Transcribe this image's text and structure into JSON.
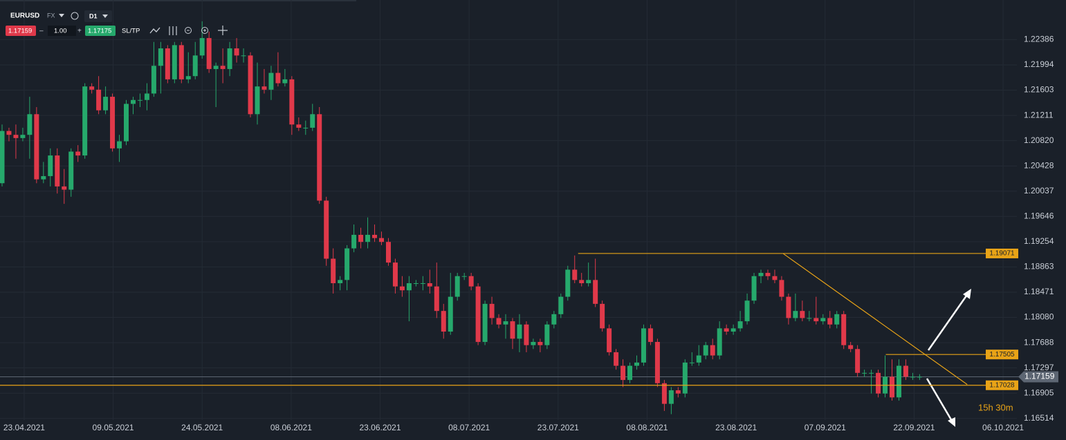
{
  "toolbar": {
    "symbol": "EURUSD",
    "market": "FX",
    "timeframe": "D1",
    "lot": "1.00",
    "ask": "1.17175",
    "sltp": "SL/TP"
  },
  "chart_data": {
    "type": "candlestick",
    "xlim": [
      -0.3,
      147.1
    ],
    "ylim": [
      1.1649,
      1.23
    ],
    "yticks": [
      1.22386,
      1.21994,
      1.21603,
      1.21211,
      {
        "value": 1.2082,
        "label": "1.20820"
      },
      1.20428,
      1.20037,
      1.19646,
      1.19254,
      1.18863,
      1.18471,
      {
        "value": 1.1808,
        "label": "1.18080"
      },
      1.17688,
      1.17297,
      1.16905,
      1.16514
    ],
    "xticks": [
      {
        "value": 3.2,
        "label": "23.04.2021"
      },
      {
        "value": 16.1,
        "label": "09.05.2021"
      },
      {
        "value": 29.0,
        "label": "24.05.2021"
      },
      {
        "value": 41.9,
        "label": "08.06.2021"
      },
      {
        "value": 54.8,
        "label": "23.06.2021"
      },
      {
        "value": 67.7,
        "label": "08.07.2021"
      },
      {
        "value": 80.6,
        "label": "23.07.2021"
      },
      {
        "value": 93.5,
        "label": "08.08.2021"
      },
      {
        "value": 106.4,
        "label": "23.08.2021"
      },
      {
        "value": 119.3,
        "label": "07.09.2021"
      },
      {
        "value": 132.2,
        "label": "22.09.2021"
      },
      {
        "value": 145.1,
        "label": "06.10.2021"
      }
    ],
    "grid": true,
    "up_color": "#26a96c",
    "down_color": "#e0394a",
    "level_color": "#e8a317",
    "last_price": 1.17159,
    "countdown": "15h 30m",
    "levels": [
      {
        "value": 1.19071,
        "start": 83.5
      },
      {
        "value": 1.17505,
        "start": 128.1
      },
      {
        "value": 1.17028,
        "start": -0.3
      }
    ],
    "trendline": {
      "x": [
        113.2,
        139.9
      ],
      "y": [
        1.19071,
        1.1704
      ]
    },
    "candles": [
      [
        1.2016,
        1.2107,
        1.2011,
        1.2097
      ],
      [
        1.2097,
        1.2102,
        1.2081,
        1.2091
      ],
      [
        1.2091,
        1.2107,
        1.2054,
        1.2086
      ],
      [
        1.2086,
        1.2102,
        1.2081,
        1.2091
      ],
      [
        1.2091,
        1.215,
        1.2054,
        1.2123
      ],
      [
        1.2123,
        1.2134,
        1.2016,
        1.2022
      ],
      [
        1.2022,
        1.2049,
        1.2016,
        1.2027
      ],
      [
        1.2027,
        1.207,
        1.2011,
        1.2059
      ],
      [
        1.2059,
        1.207,
        1.2,
        1.2011
      ],
      [
        1.2011,
        1.2038,
        1.1984,
        1.2006
      ],
      [
        1.2006,
        1.207,
        1.1995,
        1.2065
      ],
      [
        1.2065,
        1.2075,
        1.2049,
        1.2059
      ],
      [
        1.2059,
        1.2171,
        1.2054,
        1.2166
      ],
      [
        1.2166,
        1.2171,
        1.2155,
        1.2161
      ],
      [
        1.2161,
        1.2182,
        1.2123,
        1.2129
      ],
      [
        1.2129,
        1.2166,
        1.2123,
        1.215
      ],
      [
        1.215,
        1.2155,
        1.2065,
        1.207
      ],
      [
        1.207,
        1.2091,
        1.2049,
        1.2081
      ],
      [
        1.2081,
        1.2145,
        1.2075,
        1.2139
      ],
      [
        1.2139,
        1.215,
        1.2123,
        1.2145
      ],
      [
        1.2145,
        1.2155,
        1.2134,
        1.2145
      ],
      [
        1.2145,
        1.2171,
        1.2129,
        1.2155
      ],
      [
        1.2155,
        1.2235,
        1.215,
        1.2198
      ],
      [
        1.2198,
        1.2235,
        1.2155,
        1.2225
      ],
      [
        1.2225,
        1.223,
        1.2171,
        1.2177
      ],
      [
        1.2177,
        1.2235,
        1.2171,
        1.223
      ],
      [
        1.223,
        1.2235,
        1.2171,
        1.2177
      ],
      [
        1.2177,
        1.2219,
        1.2171,
        1.2182
      ],
      [
        1.2182,
        1.2235,
        1.2177,
        1.2214
      ],
      [
        1.2214,
        1.2267,
        1.2209,
        1.2241
      ],
      [
        1.2241,
        1.2251,
        1.2187,
        1.2193
      ],
      [
        1.2193,
        1.2203,
        1.2134,
        1.2198
      ],
      [
        1.2198,
        1.2225,
        1.2171,
        1.2193
      ],
      [
        1.2193,
        1.2235,
        1.2182,
        1.2225
      ],
      [
        1.2225,
        1.2241,
        1.2203,
        1.2214
      ],
      [
        1.2214,
        1.2225,
        1.2203,
        1.2214
      ],
      [
        1.2214,
        1.2219,
        1.2118,
        1.2123
      ],
      [
        1.2123,
        1.2203,
        1.2107,
        1.2166
      ],
      [
        1.2166,
        1.2193,
        1.2155,
        1.2161
      ],
      [
        1.2161,
        1.2198,
        1.2145,
        1.2187
      ],
      [
        1.2187,
        1.2219,
        1.2166,
        1.2171
      ],
      [
        1.2171,
        1.2193,
        1.2166,
        1.2177
      ],
      [
        1.2177,
        1.2182,
        1.2091,
        1.2107
      ],
      [
        1.2107,
        1.2118,
        1.2097,
        1.2102
      ],
      [
        1.2102,
        1.2113,
        1.2091,
        1.2102
      ],
      [
        1.2102,
        1.2139,
        1.2097,
        1.2123
      ],
      [
        1.2123,
        1.2134,
        1.1984,
        1.1989
      ],
      [
        1.1989,
        1.1995,
        1.1888,
        1.1899
      ],
      [
        1.1899,
        1.1915,
        1.1845,
        1.1861
      ],
      [
        1.1861,
        1.1872,
        1.185,
        1.1866
      ],
      [
        1.1866,
        1.192,
        1.185,
        1.1915
      ],
      [
        1.1915,
        1.1952,
        1.1909,
        1.1936
      ],
      [
        1.1936,
        1.1947,
        1.1915,
        1.1925
      ],
      [
        1.1925,
        1.1963,
        1.1915,
        1.1936
      ],
      [
        1.1936,
        1.1952,
        1.1925,
        1.1931
      ],
      [
        1.1931,
        1.1941,
        1.192,
        1.1925
      ],
      [
        1.1925,
        1.1931,
        1.1888,
        1.1893
      ],
      [
        1.1893,
        1.1899,
        1.1845,
        1.1856
      ],
      [
        1.1856,
        1.1872,
        1.184,
        1.185
      ],
      [
        1.185,
        1.1872,
        1.1802,
        1.1861
      ],
      [
        1.1861,
        1.1866,
        1.1856,
        1.1861
      ],
      [
        1.1861,
        1.1872,
        1.185,
        1.1861
      ],
      [
        1.1861,
        1.1882,
        1.1845,
        1.1856
      ],
      [
        1.1856,
        1.1893,
        1.1807,
        1.1818
      ],
      [
        1.1818,
        1.1829,
        1.1775,
        1.1786
      ],
      [
        1.1786,
        1.1877,
        1.1781,
        1.184
      ],
      [
        1.184,
        1.1877,
        1.1834,
        1.1872
      ],
      [
        1.1872,
        1.1877,
        1.1866,
        1.1872
      ],
      [
        1.1872,
        1.1877,
        1.185,
        1.1856
      ],
      [
        1.1856,
        1.1861,
        1.1765,
        1.177
      ],
      [
        1.177,
        1.1834,
        1.1765,
        1.1829
      ],
      [
        1.1829,
        1.184,
        1.1797,
        1.1807
      ],
      [
        1.1807,
        1.1813,
        1.1791,
        1.1797
      ],
      [
        1.1797,
        1.1813,
        1.1775,
        1.1802
      ],
      [
        1.1802,
        1.1807,
        1.1759,
        1.1775
      ],
      [
        1.1775,
        1.1813,
        1.1754,
        1.1797
      ],
      [
        1.1797,
        1.1802,
        1.1754,
        1.1765
      ],
      [
        1.1765,
        1.1775,
        1.1759,
        1.177
      ],
      [
        1.177,
        1.1775,
        1.1754,
        1.1765
      ],
      [
        1.1765,
        1.1802,
        1.1759,
        1.1797
      ],
      [
        1.1797,
        1.1818,
        1.1791,
        1.1813
      ],
      [
        1.1813,
        1.1845,
        1.1807,
        1.184
      ],
      [
        1.184,
        1.1888,
        1.1834,
        1.1882
      ],
      [
        1.1882,
        1.1904,
        1.1861,
        1.1866
      ],
      [
        1.1866,
        1.1877,
        1.1856,
        1.1861
      ],
      [
        1.1861,
        1.1893,
        1.1856,
        1.1866
      ],
      [
        1.1866,
        1.1899,
        1.1824,
        1.1829
      ],
      [
        1.1829,
        1.1834,
        1.1786,
        1.1791
      ],
      [
        1.1791,
        1.1797,
        1.1749,
        1.1754
      ],
      [
        1.1754,
        1.1759,
        1.1727,
        1.1733
      ],
      [
        1.1733,
        1.1743,
        1.17,
        1.1711
      ],
      [
        1.1711,
        1.1738,
        1.1706,
        1.1733
      ],
      [
        1.1733,
        1.1749,
        1.1727,
        1.1738
      ],
      [
        1.1738,
        1.1797,
        1.1733,
        1.1791
      ],
      [
        1.1791,
        1.1797,
        1.1765,
        1.177
      ],
      [
        1.177,
        1.1775,
        1.17,
        1.1706
      ],
      [
        1.1706,
        1.1711,
        1.1663,
        1.1674
      ],
      [
        1.1674,
        1.17,
        1.1658,
        1.1695
      ],
      [
        1.1695,
        1.17,
        1.1684,
        1.169
      ],
      [
        1.169,
        1.1743,
        1.1684,
        1.1738
      ],
      [
        1.1738,
        1.1754,
        1.1733,
        1.1738
      ],
      [
        1.1738,
        1.1765,
        1.1733,
        1.1749
      ],
      [
        1.1749,
        1.177,
        1.1743,
        1.1765
      ],
      [
        1.1765,
        1.1775,
        1.1743,
        1.1749
      ],
      [
        1.1749,
        1.1802,
        1.1743,
        1.1791
      ],
      [
        1.1791,
        1.1797,
        1.1781,
        1.1786
      ],
      [
        1.1786,
        1.1797,
        1.1781,
        1.1791
      ],
      [
        1.1791,
        1.1818,
        1.1786,
        1.1802
      ],
      [
        1.1802,
        1.1845,
        1.1797,
        1.1834
      ],
      [
        1.1834,
        1.1877,
        1.1829,
        1.1872
      ],
      [
        1.1872,
        1.1882,
        1.1861,
        1.1877
      ],
      [
        1.1877,
        1.1882,
        1.1866,
        1.1872
      ],
      [
        1.1872,
        1.1882,
        1.1861,
        1.1866
      ],
      [
        1.1866,
        1.1872,
        1.1834,
        1.184
      ],
      [
        1.184,
        1.1845,
        1.1797,
        1.1807
      ],
      [
        1.1807,
        1.1845,
        1.1802,
        1.1818
      ],
      [
        1.1818,
        1.1834,
        1.1802,
        1.1807
      ],
      [
        1.1807,
        1.1818,
        1.1802,
        1.1807
      ],
      [
        1.1807,
        1.184,
        1.1797,
        1.1802
      ],
      [
        1.1802,
        1.1813,
        1.1797,
        1.1807
      ],
      [
        1.1807,
        1.1818,
        1.1791,
        1.1797
      ],
      [
        1.1797,
        1.1818,
        1.1791,
        1.1813
      ],
      [
        1.1813,
        1.1818,
        1.1759,
        1.1765
      ],
      [
        1.1765,
        1.177,
        1.1754,
        1.1759
      ],
      [
        1.1759,
        1.1765,
        1.1716,
        1.1722
      ],
      [
        1.1722,
        1.1727,
        1.1716,
        1.1722
      ],
      [
        1.1722,
        1.1727,
        1.169,
        1.1722
      ],
      [
        1.1722,
        1.1727,
        1.1684,
        1.169
      ],
      [
        1.169,
        1.1749,
        1.1684,
        1.1716
      ],
      [
        1.1716,
        1.1743,
        1.1679,
        1.1684
      ],
      [
        1.1684,
        1.1743,
        1.1679,
        1.1733
      ],
      [
        1.1733,
        1.1743,
        1.1711,
        1.1716
      ],
      [
        1.1716,
        1.1722,
        1.1711,
        1.1716
      ],
      [
        1.1716,
        1.172,
        1.1711,
        1.1716
      ]
    ]
  }
}
